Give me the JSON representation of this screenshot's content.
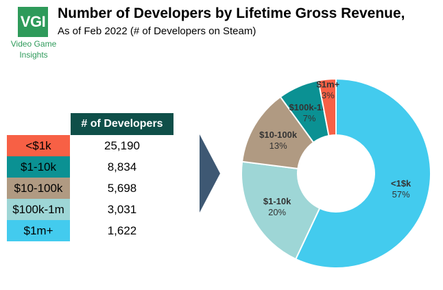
{
  "logo": {
    "text": "VGI",
    "line1": "Video Game",
    "line2": "Insights"
  },
  "chart_data": {
    "type": "pie",
    "title": "Number of Developers by Lifetime Gross Revenue,",
    "subtitle": "As of Feb 2022 (# of Developers on Steam)",
    "table_header": "# of Developers",
    "categories": [
      "<$1k",
      "$1-10k",
      "$10-100k",
      "$100k-1m",
      "$1m+"
    ],
    "values": [
      25190,
      8834,
      5698,
      3031,
      1622
    ],
    "value_labels": [
      "25,190",
      "8,834",
      "5,698",
      "3,031",
      "1,622"
    ],
    "table_colors": [
      "#f76045",
      "#0b9193",
      "#b09a82",
      "#9ed6d6",
      "#43cbee"
    ],
    "donut_slices": [
      {
        "label": "<1$k",
        "pct": "57%",
        "value": 57,
        "color": "#43cbee"
      },
      {
        "label": "$1-10k",
        "pct": "20%",
        "value": 20,
        "color": "#9ed6d6"
      },
      {
        "label": "$10-100k",
        "pct": "13%",
        "value": 13,
        "color": "#b09a82"
      },
      {
        "label": "$100k-1m",
        "pct": "7%",
        "value": 7,
        "color": "#0b9193"
      },
      {
        "label": "$1m+",
        "pct": "3%",
        "value": 3,
        "color": "#f76045"
      }
    ]
  }
}
